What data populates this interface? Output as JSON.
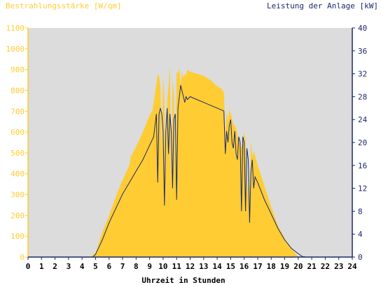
{
  "chart_data": {
    "type": "area",
    "left_axis_title": "Bestrahlungsstärke [W/qm]",
    "right_axis_title": "Leistung der Anlage [kW]",
    "xlabel": "Uhrzeit in Stunden",
    "x_ticks": [
      "0",
      "1",
      "2",
      "3",
      "4",
      "5",
      "6",
      "7",
      "8",
      "9",
      "10",
      "11",
      "12",
      "13",
      "14",
      "15",
      "16",
      "17",
      "18",
      "19",
      "20",
      "21",
      "22",
      "23",
      "24"
    ],
    "left_ticks": [
      "0",
      "100",
      "200",
      "300",
      "400",
      "500",
      "600",
      "700",
      "800",
      "900",
      "1000",
      "1100"
    ],
    "right_ticks": [
      "0",
      "4",
      "8",
      "12",
      "16",
      "20",
      "24",
      "28",
      "32",
      "36",
      "40"
    ],
    "xlim": [
      0,
      24
    ],
    "ylim_left": [
      0,
      1100
    ],
    "ylim_right": [
      0,
      40
    ],
    "grid": false,
    "colors": {
      "plot_bg": "#dcdcdc",
      "irradiance": "#ffcc33",
      "power": "#1a2a6c",
      "left_axis": "#ffcc33",
      "right_axis": "#1a2a6c"
    },
    "series": [
      {
        "name": "Bestrahlungsstärke [W/qm]",
        "axis": "left",
        "x": [
          0,
          4.6,
          5,
          5.5,
          6,
          6.5,
          7,
          7.5,
          7.6,
          8,
          8.5,
          9,
          9.2,
          9.4,
          9.6,
          9.7,
          9.8,
          9.9,
          10,
          10.1,
          10.2,
          10.3,
          10.4,
          10.5,
          10.6,
          10.7,
          10.8,
          10.9,
          11,
          11.1,
          11.2,
          11.3,
          11.4,
          11.5,
          11.6,
          11.7,
          11.8,
          12,
          12.5,
          13,
          13.5,
          14,
          14.3,
          14.5,
          14.6,
          14.7,
          14.8,
          14.9,
          15,
          15.2,
          15.4,
          15.6,
          15.8,
          16,
          16.1,
          16.2,
          16.3,
          16.4,
          16.5,
          16.6,
          16.7,
          17,
          17.5,
          18,
          18.5,
          19,
          19.5,
          20,
          20.3,
          20.6,
          21,
          24
        ],
        "y": [
          0,
          0,
          20,
          120,
          200,
          290,
          370,
          440,
          480,
          530,
          600,
          680,
          700,
          780,
          880,
          870,
          820,
          500,
          870,
          740,
          380,
          750,
          820,
          920,
          300,
          850,
          780,
          400,
          890,
          880,
          910,
          820,
          890,
          860,
          880,
          870,
          900,
          890,
          880,
          870,
          850,
          820,
          810,
          790,
          580,
          700,
          650,
          710,
          690,
          640,
          620,
          560,
          520,
          600,
          560,
          290,
          420,
          250,
          560,
          480,
          510,
          440,
          340,
          240,
          150,
          90,
          40,
          0,
          0,
          0,
          0,
          0
        ]
      },
      {
        "name": "Leistung der Anlage [kW]",
        "axis": "right",
        "x": [
          0,
          4.8,
          5,
          5.5,
          6,
          6.5,
          7,
          7.5,
          8,
          8.5,
          9,
          9.3,
          9.5,
          9.6,
          9.7,
          9.8,
          9.9,
          10,
          10.1,
          10.2,
          10.3,
          10.4,
          10.5,
          10.6,
          10.7,
          10.8,
          10.9,
          11,
          11.1,
          11.2,
          11.3,
          11.4,
          11.5,
          11.6,
          11.7,
          11.8,
          12,
          12.5,
          13,
          13.5,
          14,
          14.5,
          14.6,
          14.7,
          14.8,
          14.9,
          15,
          15.1,
          15.2,
          15.3,
          15.4,
          15.5,
          15.6,
          15.7,
          15.8,
          15.9,
          16,
          16.1,
          16.2,
          16.3,
          16.4,
          16.5,
          16.6,
          16.7,
          16.8,
          17,
          17.5,
          18,
          18.5,
          19,
          19.5,
          20,
          20.3,
          20.6,
          24
        ],
        "y": [
          0,
          0,
          0.5,
          3,
          6,
          8.5,
          11,
          13,
          15,
          17,
          19.5,
          21,
          25,
          13,
          25,
          26,
          25,
          22,
          9,
          22,
          26,
          18,
          25,
          22,
          12,
          24,
          25,
          10,
          26,
          28,
          30,
          29,
          28,
          27,
          28,
          27.5,
          28,
          27.5,
          27,
          26.5,
          26,
          25.5,
          18,
          22,
          20,
          23,
          24,
          20,
          19,
          22,
          18,
          17,
          21,
          20,
          8,
          21,
          20,
          8,
          19,
          17,
          6,
          15,
          17,
          12,
          14,
          13,
          10,
          7.5,
          5,
          3,
          1.5,
          0.6,
          0.1,
          0,
          0
        ]
      }
    ]
  }
}
